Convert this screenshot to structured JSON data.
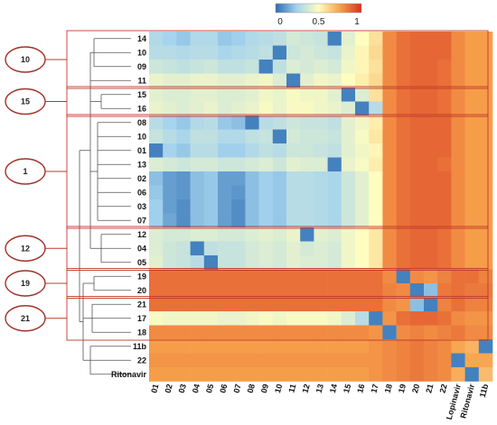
{
  "chart_data": {
    "type": "heatmap",
    "title": "",
    "xlabel": "",
    "ylabel": "",
    "colorbar": {
      "min": 0,
      "max": 1,
      "ticks": [
        "0",
        "0.5",
        "1"
      ],
      "colors": [
        "#2b6cb3",
        "#a6d4ee",
        "#fffdc0",
        "#f7a24c",
        "#d7301f"
      ]
    },
    "columns": [
      "01",
      "02",
      "03",
      "04",
      "05",
      "06",
      "07",
      "08",
      "09",
      "10",
      "11",
      "12",
      "13",
      "14",
      "15",
      "16",
      "17",
      "18",
      "19",
      "20",
      "21",
      "22",
      "Lopinavir",
      "Ritonavir",
      "11b"
    ],
    "rows": [
      "14",
      "10",
      "09",
      "11",
      "15",
      "16",
      "08",
      "10",
      "01",
      "13",
      "02",
      "06",
      "03",
      "07",
      "12",
      "04",
      "05",
      "19",
      "20",
      "21",
      "17",
      "18",
      "11b",
      "22",
      "Ritonavir"
    ],
    "row_clusters": [
      {
        "label": "10",
        "rows": [
          "14",
          "10",
          "09",
          "11"
        ]
      },
      {
        "label": "15",
        "rows": [
          "15",
          "16"
        ]
      },
      {
        "label": "1",
        "rows": [
          "08",
          "10",
          "01",
          "13",
          "02",
          "06",
          "03",
          "07"
        ]
      },
      {
        "label": "12",
        "rows": [
          "12",
          "04",
          "05"
        ]
      },
      {
        "label": "19",
        "rows": [
          "19",
          "20"
        ]
      },
      {
        "label": "21",
        "rows": [
          "21",
          "17",
          "18"
        ]
      }
    ],
    "values": [
      [
        0.28,
        0.25,
        0.22,
        0.28,
        0.28,
        0.22,
        0.24,
        0.28,
        0.3,
        0.32,
        0.38,
        0.36,
        0.34,
        0.05,
        0.42,
        0.5,
        0.58,
        0.8,
        0.86,
        0.88,
        0.88,
        0.88,
        0.8,
        0.76,
        0.76
      ],
      [
        0.3,
        0.3,
        0.28,
        0.3,
        0.3,
        0.26,
        0.28,
        0.3,
        0.32,
        0.05,
        0.36,
        0.38,
        0.36,
        0.34,
        0.44,
        0.52,
        0.6,
        0.8,
        0.86,
        0.88,
        0.88,
        0.88,
        0.8,
        0.76,
        0.76
      ],
      [
        0.36,
        0.34,
        0.32,
        0.34,
        0.36,
        0.32,
        0.32,
        0.34,
        0.05,
        0.32,
        0.4,
        0.38,
        0.4,
        0.38,
        0.46,
        0.52,
        0.58,
        0.8,
        0.86,
        0.88,
        0.88,
        0.86,
        0.8,
        0.76,
        0.76
      ],
      [
        0.44,
        0.42,
        0.42,
        0.44,
        0.44,
        0.42,
        0.42,
        0.44,
        0.46,
        0.4,
        0.05,
        0.42,
        0.46,
        0.44,
        0.5,
        0.54,
        0.6,
        0.8,
        0.86,
        0.88,
        0.88,
        0.86,
        0.8,
        0.76,
        0.76
      ],
      [
        0.42,
        0.4,
        0.4,
        0.42,
        0.42,
        0.4,
        0.4,
        0.42,
        0.46,
        0.44,
        0.48,
        0.46,
        0.46,
        0.42,
        0.05,
        0.4,
        0.58,
        0.8,
        0.86,
        0.88,
        0.88,
        0.86,
        0.8,
        0.76,
        0.76
      ],
      [
        0.44,
        0.42,
        0.4,
        0.42,
        0.44,
        0.4,
        0.42,
        0.44,
        0.48,
        0.44,
        0.48,
        0.48,
        0.46,
        0.44,
        0.4,
        0.05,
        0.3,
        0.8,
        0.86,
        0.88,
        0.88,
        0.86,
        0.8,
        0.76,
        0.76
      ],
      [
        0.3,
        0.25,
        0.22,
        0.28,
        0.3,
        0.22,
        0.2,
        0.05,
        0.3,
        0.32,
        0.36,
        0.34,
        0.34,
        0.32,
        0.42,
        0.46,
        0.54,
        0.8,
        0.86,
        0.88,
        0.88,
        0.88,
        0.8,
        0.76,
        0.76
      ],
      [
        0.34,
        0.3,
        0.26,
        0.32,
        0.32,
        0.28,
        0.28,
        0.32,
        0.34,
        0.05,
        0.38,
        0.36,
        0.36,
        0.34,
        0.42,
        0.48,
        0.56,
        0.8,
        0.86,
        0.88,
        0.88,
        0.88,
        0.8,
        0.76,
        0.76
      ],
      [
        0.05,
        0.25,
        0.22,
        0.3,
        0.3,
        0.24,
        0.24,
        0.28,
        0.32,
        0.3,
        0.36,
        0.36,
        0.34,
        0.32,
        0.42,
        0.46,
        0.52,
        0.8,
        0.86,
        0.88,
        0.88,
        0.88,
        0.8,
        0.76,
        0.76
      ],
      [
        0.4,
        0.38,
        0.36,
        0.38,
        0.38,
        0.36,
        0.36,
        0.38,
        0.4,
        0.36,
        0.42,
        0.4,
        0.4,
        0.05,
        0.44,
        0.48,
        0.54,
        0.8,
        0.86,
        0.88,
        0.88,
        0.86,
        0.8,
        0.76,
        0.76
      ],
      [
        0.2,
        0.12,
        0.1,
        0.2,
        0.22,
        0.12,
        0.12,
        0.2,
        0.24,
        0.22,
        0.3,
        0.3,
        0.28,
        0.26,
        0.36,
        0.42,
        0.5,
        0.8,
        0.86,
        0.88,
        0.88,
        0.88,
        0.8,
        0.76,
        0.76
      ],
      [
        0.22,
        0.12,
        0.1,
        0.2,
        0.22,
        0.12,
        0.1,
        0.2,
        0.24,
        0.22,
        0.3,
        0.3,
        0.28,
        0.26,
        0.36,
        0.42,
        0.5,
        0.8,
        0.86,
        0.88,
        0.88,
        0.88,
        0.8,
        0.76,
        0.76
      ],
      [
        0.24,
        0.12,
        0.08,
        0.2,
        0.22,
        0.12,
        0.08,
        0.2,
        0.24,
        0.22,
        0.3,
        0.3,
        0.28,
        0.26,
        0.36,
        0.42,
        0.5,
        0.8,
        0.86,
        0.88,
        0.88,
        0.88,
        0.8,
        0.76,
        0.76
      ],
      [
        0.24,
        0.14,
        0.08,
        0.2,
        0.22,
        0.12,
        0.08,
        0.2,
        0.24,
        0.22,
        0.3,
        0.3,
        0.28,
        0.26,
        0.36,
        0.42,
        0.5,
        0.8,
        0.86,
        0.88,
        0.88,
        0.88,
        0.8,
        0.76,
        0.76
      ],
      [
        0.4,
        0.38,
        0.38,
        0.4,
        0.4,
        0.38,
        0.38,
        0.4,
        0.42,
        0.4,
        0.44,
        0.05,
        0.42,
        0.4,
        0.46,
        0.5,
        0.56,
        0.8,
        0.86,
        0.88,
        0.88,
        0.86,
        0.8,
        0.76,
        0.76
      ],
      [
        0.4,
        0.36,
        0.34,
        0.05,
        0.32,
        0.34,
        0.34,
        0.38,
        0.4,
        0.38,
        0.42,
        0.38,
        0.4,
        0.38,
        0.46,
        0.5,
        0.56,
        0.8,
        0.86,
        0.88,
        0.88,
        0.86,
        0.8,
        0.76,
        0.76
      ],
      [
        0.42,
        0.36,
        0.34,
        0.3,
        0.05,
        0.34,
        0.34,
        0.38,
        0.4,
        0.38,
        0.42,
        0.4,
        0.4,
        0.38,
        0.46,
        0.5,
        0.56,
        0.8,
        0.86,
        0.88,
        0.88,
        0.86,
        0.8,
        0.76,
        0.76
      ],
      [
        0.86,
        0.86,
        0.86,
        0.86,
        0.86,
        0.86,
        0.86,
        0.86,
        0.86,
        0.86,
        0.86,
        0.86,
        0.86,
        0.86,
        0.86,
        0.86,
        0.86,
        0.8,
        0.05,
        0.8,
        0.78,
        0.82,
        0.86,
        0.86,
        0.82
      ],
      [
        0.86,
        0.86,
        0.86,
        0.86,
        0.86,
        0.86,
        0.86,
        0.86,
        0.86,
        0.86,
        0.86,
        0.86,
        0.86,
        0.86,
        0.86,
        0.86,
        0.86,
        0.82,
        0.8,
        0.05,
        0.2,
        0.84,
        0.86,
        0.84,
        0.84
      ],
      [
        0.86,
        0.86,
        0.86,
        0.86,
        0.86,
        0.86,
        0.86,
        0.86,
        0.86,
        0.86,
        0.86,
        0.86,
        0.86,
        0.86,
        0.86,
        0.86,
        0.86,
        0.8,
        0.78,
        0.2,
        0.05,
        0.82,
        0.86,
        0.82,
        0.82
      ],
      [
        0.48,
        0.46,
        0.46,
        0.46,
        0.46,
        0.44,
        0.44,
        0.46,
        0.48,
        0.46,
        0.48,
        0.48,
        0.48,
        0.46,
        0.4,
        0.3,
        0.05,
        0.78,
        0.86,
        0.88,
        0.88,
        0.86,
        0.8,
        0.78,
        0.78
      ],
      [
        0.8,
        0.8,
        0.8,
        0.8,
        0.8,
        0.8,
        0.8,
        0.8,
        0.8,
        0.8,
        0.8,
        0.8,
        0.8,
        0.8,
        0.8,
        0.8,
        0.78,
        0.05,
        0.8,
        0.82,
        0.8,
        0.82,
        0.84,
        0.8,
        0.8
      ],
      [
        0.76,
        0.76,
        0.76,
        0.76,
        0.76,
        0.76,
        0.76,
        0.76,
        0.76,
        0.76,
        0.76,
        0.76,
        0.76,
        0.76,
        0.76,
        0.76,
        0.78,
        0.8,
        0.82,
        0.84,
        0.82,
        0.8,
        0.74,
        0.7,
        0.05
      ],
      [
        0.78,
        0.78,
        0.78,
        0.78,
        0.78,
        0.78,
        0.78,
        0.78,
        0.78,
        0.78,
        0.78,
        0.78,
        0.78,
        0.78,
        0.78,
        0.78,
        0.78,
        0.8,
        0.82,
        0.84,
        0.82,
        0.8,
        0.05,
        0.74,
        0.74
      ],
      [
        0.76,
        0.76,
        0.76,
        0.76,
        0.76,
        0.76,
        0.76,
        0.76,
        0.76,
        0.76,
        0.76,
        0.76,
        0.76,
        0.76,
        0.76,
        0.76,
        0.78,
        0.8,
        0.82,
        0.84,
        0.82,
        0.8,
        0.72,
        0.05,
        0.68
      ]
    ]
  }
}
